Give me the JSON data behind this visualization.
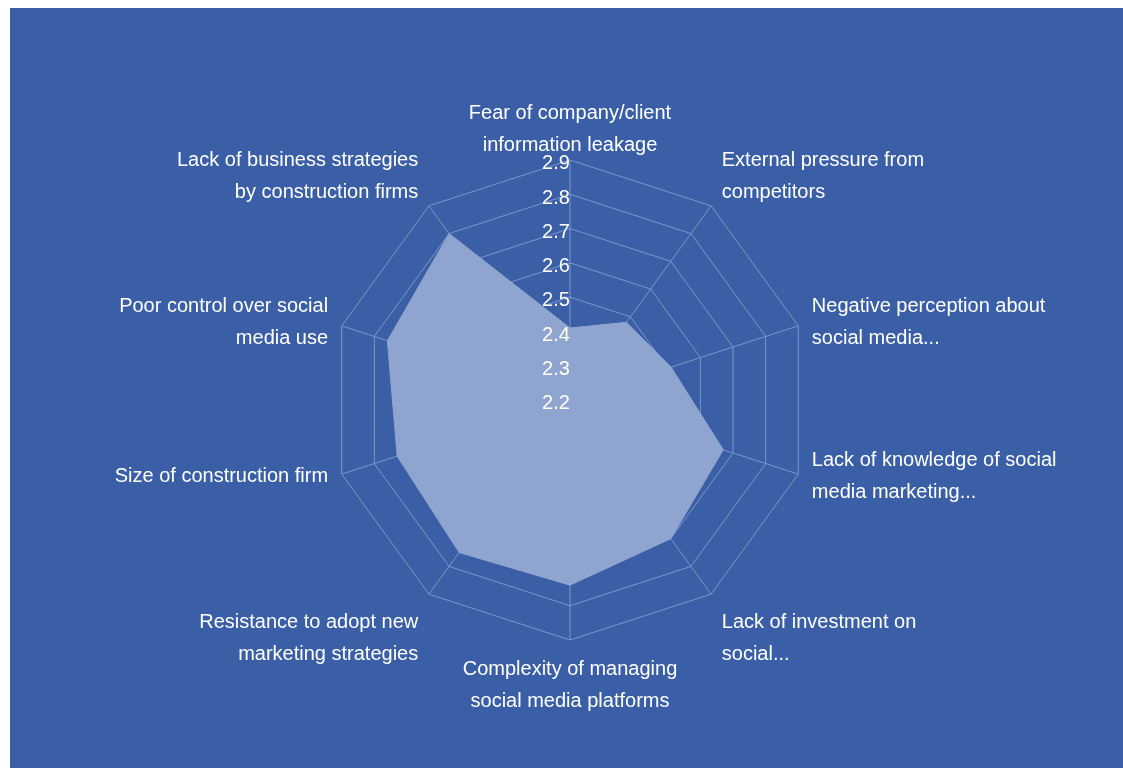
{
  "chart_data": {
    "type": "radar",
    "categories": [
      "Fear of company/client information leakage",
      "External pressure from competitors",
      "Negative perception about social media...",
      "Lack of knowledge of social media marketing...",
      "Lack of investment on social...",
      "Complexity of managing social media platforms",
      "Resistance to adopt new marketing strategies",
      "Size of construction firm",
      "Poor control over social media use",
      "Lack of business strategies by construction firms"
    ],
    "series": [
      {
        "color": "#8fa5cf",
        "values": [
          2.41,
          2.48,
          2.51,
          2.67,
          2.7,
          2.74,
          2.75,
          2.73,
          2.76,
          2.8
        ]
      }
    ],
    "ylim": [
      2.2,
      2.9
    ],
    "yticks": [
      2.2,
      2.3,
      2.4,
      2.5,
      2.6,
      2.7,
      2.8,
      2.9
    ],
    "grid": true,
    "legend": false
  }
}
